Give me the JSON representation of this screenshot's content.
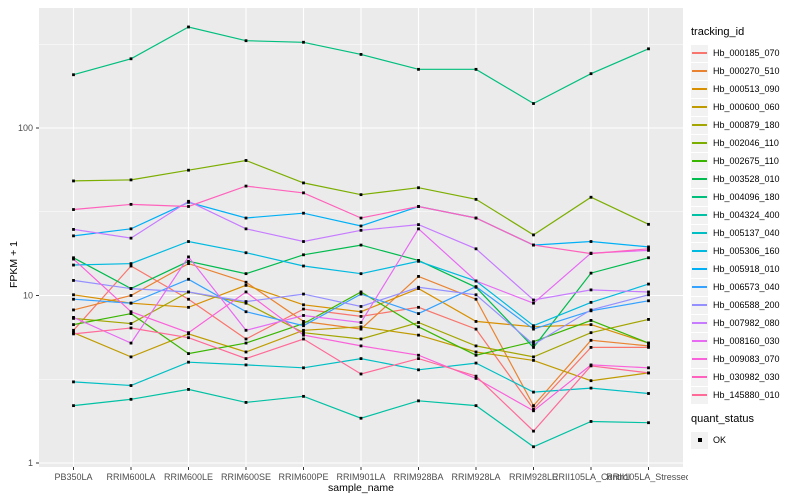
{
  "chart_data": {
    "type": "line",
    "title": "",
    "xlabel": "sample_name",
    "ylabel": "FPKM + 1",
    "y_scale": "log10",
    "y_ticks": [
      1,
      10,
      100
    ],
    "y_minor_ticks": [
      3.162,
      31.62,
      316.2
    ],
    "ylim": [
      0.95,
      510
    ],
    "grid": "white major+minor gridlines on gray panel",
    "legend_position": "right",
    "point_marker": {
      "shape": "small-square",
      "color": "#000000"
    },
    "categories": [
      "PB350LA",
      "RRIM600LA",
      "RRIM600LE",
      "RRIM600SE",
      "RRIM600PE",
      "RRIM901LA",
      "RRIM928BA",
      "RRIM928LA",
      "RRIM928LE",
      "RRII105LA_Control",
      "RRII105LA_Stressed"
    ],
    "series": [
      {
        "name": "Hb_000185_070",
        "color": "#F8766D",
        "values": [
          6.2,
          15,
          9.5,
          5.5,
          8.3,
          7.5,
          8.5,
          6.3,
          2.1,
          4.9,
          4.9
        ]
      },
      {
        "name": "Hb_000270_510",
        "color": "#EA8331",
        "values": [
          8.2,
          10,
          15.5,
          12,
          7.0,
          6.3,
          13,
          9.5,
          2.2,
          5.4,
          5.0
        ]
      },
      {
        "name": "Hb_000513_090",
        "color": "#D89000",
        "values": [
          10.1,
          9.0,
          8.5,
          11.5,
          8.8,
          8.0,
          11,
          7.0,
          6.5,
          6.7,
          5.2
        ]
      },
      {
        "name": "Hb_000600_060",
        "color": "#C09B00",
        "values": [
          6.0,
          4.3,
          5.9,
          4.6,
          6.2,
          6.5,
          5.8,
          4.6,
          4.1,
          3.1,
          3.45
        ]
      },
      {
        "name": "Hb_000879_180",
        "color": "#A3A500",
        "values": [
          7.3,
          6.8,
          10.5,
          9.0,
          6.0,
          5.5,
          6.9,
          5.0,
          4.3,
          6.0,
          7.2
        ]
      },
      {
        "name": "Hb_002046_110",
        "color": "#7CAE00",
        "values": [
          48.3,
          49,
          56,
          64,
          47,
          40,
          44,
          37.5,
          23,
          38.6,
          26.6
        ]
      },
      {
        "name": "Hb_002675_110",
        "color": "#39B600",
        "values": [
          6.7,
          7.8,
          4.5,
          5.2,
          6.8,
          10.5,
          6.5,
          4.4,
          5.3,
          7.1,
          5.2
        ]
      },
      {
        "name": "Hb_003528_010",
        "color": "#00BB4E",
        "values": [
          16.8,
          11,
          16,
          13.5,
          17.5,
          20,
          16.2,
          11.2,
          4.9,
          13.6,
          16.8
        ]
      },
      {
        "name": "Hb_004096_180",
        "color": "#00BF7D",
        "values": [
          208,
          259,
          401,
          332,
          325,
          275,
          224,
          224,
          140,
          211,
          297
        ]
      },
      {
        "name": "Hb_004324_400",
        "color": "#00C1A3",
        "values": [
          2.2,
          2.4,
          2.75,
          2.3,
          2.5,
          1.85,
          2.35,
          2.2,
          1.25,
          1.77,
          1.74
        ]
      },
      {
        "name": "Hb_005137_040",
        "color": "#00BFC4",
        "values": [
          3.05,
          2.9,
          4.0,
          3.85,
          3.7,
          4.2,
          3.6,
          3.95,
          2.65,
          2.8,
          2.6
        ]
      },
      {
        "name": "Hb_005306_160",
        "color": "#00BAE0",
        "values": [
          15.2,
          15.5,
          21,
          18,
          15,
          13.5,
          16,
          12.2,
          6.6,
          9.1,
          11.7
        ]
      },
      {
        "name": "Hb_005918_010",
        "color": "#00B0F6",
        "values": [
          22.7,
          25,
          36,
          29,
          31,
          26,
          34,
          29,
          20,
          21,
          19.5
        ]
      },
      {
        "name": "Hb_006573_040",
        "color": "#35A2FF",
        "values": [
          9.5,
          9.0,
          12.5,
          8.0,
          6.6,
          10.2,
          7.8,
          11.3,
          6.3,
          8.1,
          9.3
        ]
      },
      {
        "name": "Hb_006588_200",
        "color": "#9590FF",
        "values": [
          12.3,
          11,
          10.5,
          9.2,
          10.2,
          8.6,
          11.2,
          10.1,
          5.1,
          8.2,
          10.1
        ]
      },
      {
        "name": "Hb_007982_080",
        "color": "#C77CFF",
        "values": [
          24.8,
          22,
          36.5,
          25,
          21,
          24.5,
          26.5,
          19,
          9.4,
          10.8,
          10.5
        ]
      },
      {
        "name": "Hb_008160_030",
        "color": "#E76BF3",
        "values": [
          7.4,
          5.2,
          17,
          6.2,
          7.6,
          6.9,
          25,
          12.2,
          9.0,
          17.9,
          18.6
        ]
      },
      {
        "name": "Hb_009083_070",
        "color": "#FA62DB",
        "values": [
          16.5,
          8.0,
          6.0,
          10.5,
          5.8,
          5.0,
          4.4,
          3.2,
          2.05,
          3.85,
          3.7
        ]
      },
      {
        "name": "Hb_030982_030",
        "color": "#FF62BC",
        "values": [
          32.6,
          35,
          34,
          45,
          41,
          29,
          34,
          29,
          20,
          17.8,
          19
        ]
      },
      {
        "name": "Hb_145880_010",
        "color": "#FF6A98",
        "values": [
          5.9,
          6.4,
          5.6,
          4.2,
          5.5,
          3.4,
          4.2,
          3.3,
          1.55,
          3.8,
          3.45
        ]
      }
    ]
  },
  "legend": {
    "tracking_title": "tracking_id",
    "quant_title": "quant_status",
    "quant_items": [
      {
        "label": "OK",
        "marker": "black-square"
      }
    ]
  },
  "colors": {
    "panel_bg": "#EBEBEB",
    "grid_major": "#FFFFFF",
    "grid_minor": "#FFFFFF",
    "tick_text": "#4D4D4D",
    "tick_mark": "#333333",
    "point": "#000000",
    "legend_key_bg": "#F2F2F2"
  }
}
